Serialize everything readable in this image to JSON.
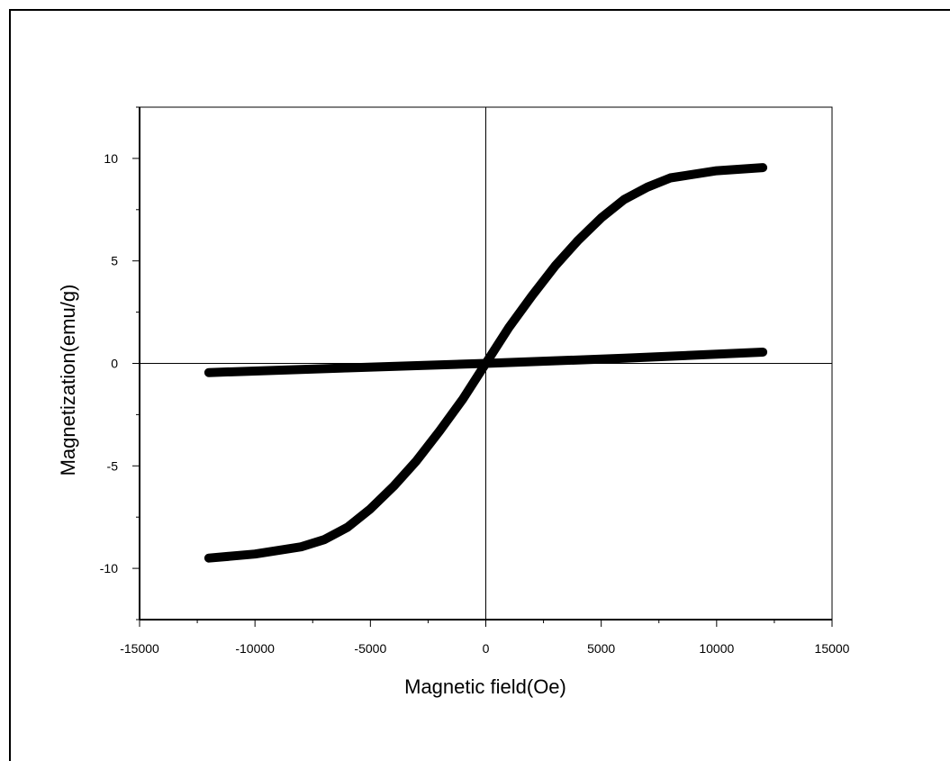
{
  "chart_data": {
    "type": "line",
    "title": "",
    "xlabel": "Magnetic field(Oe)",
    "ylabel": "Magnetization(emu/g)",
    "xlim": [
      -15000,
      15000
    ],
    "ylim": [
      -12.5,
      12.5
    ],
    "xticks": [
      -15000,
      -10000,
      -5000,
      0,
      5000,
      10000,
      15000
    ],
    "xtick_labels": [
      "-15000",
      "-10000",
      "-5000",
      "0",
      "5000",
      "10000",
      "15000"
    ],
    "yticks": [
      -10,
      -5,
      0,
      5,
      10
    ],
    "ytick_labels": [
      "-10",
      "-5",
      "0",
      "5",
      "10"
    ],
    "grid": false,
    "zero_lines": true,
    "series": [
      {
        "color": "#000000",
        "x": [
          -12000,
          -10000,
          -8000,
          -7000,
          -6000,
          -5000,
          -4000,
          -3000,
          -2000,
          -1000,
          0,
          1000,
          2000,
          3000,
          4000,
          5000,
          6000,
          7000,
          8000,
          10000,
          12000
        ],
        "y": [
          -9.5,
          -9.3,
          -8.95,
          -8.6,
          -8.0,
          -7.1,
          -6.0,
          -4.75,
          -3.3,
          -1.75,
          0.0,
          1.75,
          3.3,
          4.75,
          6.0,
          7.1,
          8.0,
          8.6,
          9.05,
          9.4,
          9.55
        ]
      },
      {
        "color": "#000000",
        "x": [
          -12000,
          -6000,
          0,
          6000,
          12000
        ],
        "y": [
          -0.45,
          -0.22,
          0.0,
          0.25,
          0.55
        ]
      }
    ]
  }
}
